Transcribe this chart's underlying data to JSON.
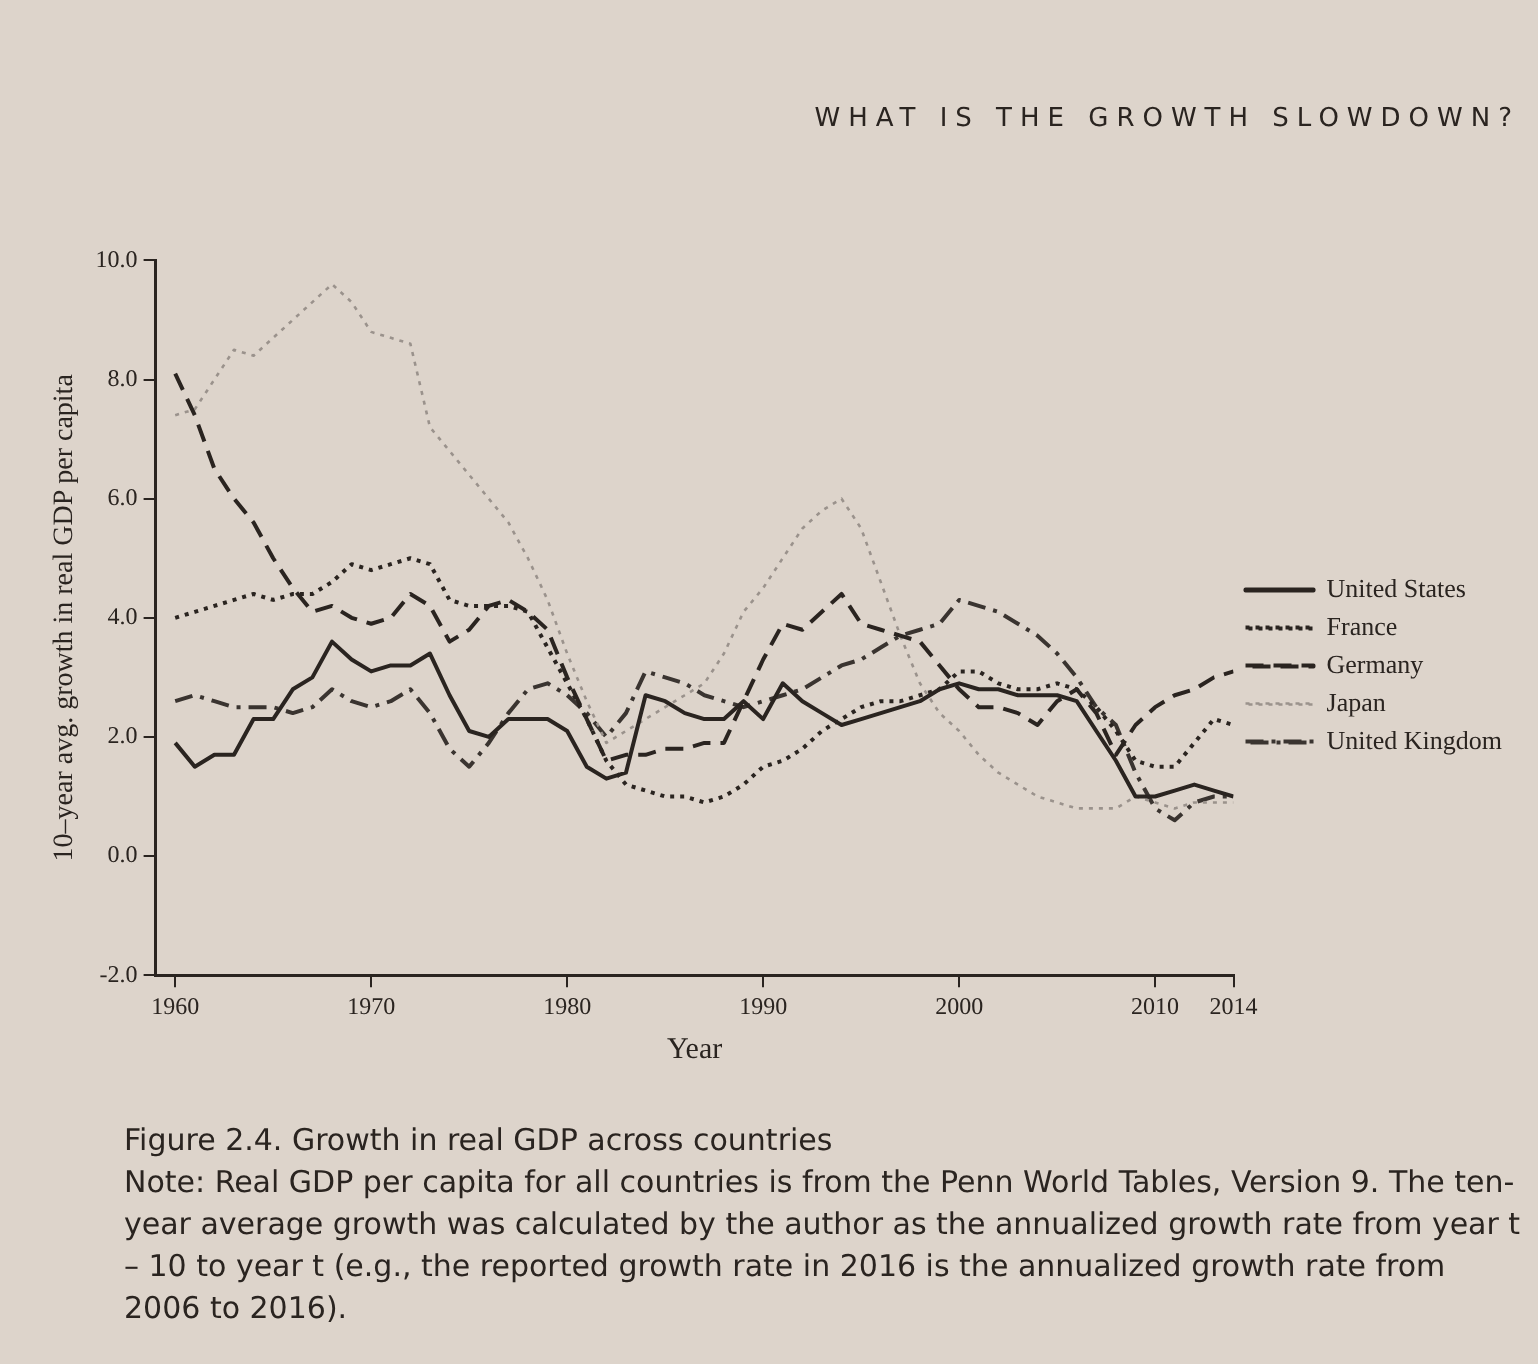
{
  "chart_data": {
    "type": "line",
    "title": "Figure 2.4. Growth in real GDP across countries",
    "xlabel": "Year",
    "ylabel": "10–year avg. growth in real GDP per capita",
    "annotations": [
      "WHAT IS THE GROWTH SLOWDOWN?",
      "Note: Real GDP per capita for all countries is from the Penn World Tables, Version 9. The ten-year average growth was calculated by the author as the annualized growth rate from year t – 10 to year t (e.g., the reported growth rate in 2016 is the annualized growth rate from 2006 to 2016)."
    ],
    "x": [
      1960,
      1961,
      1962,
      1963,
      1964,
      1965,
      1966,
      1967,
      1968,
      1969,
      1970,
      1971,
      1972,
      1973,
      1974,
      1975,
      1976,
      1977,
      1978,
      1979,
      1980,
      1981,
      1982,
      1983,
      1984,
      1985,
      1986,
      1987,
      1988,
      1989,
      1990,
      1991,
      1992,
      1993,
      1994,
      1995,
      1996,
      1997,
      1998,
      1999,
      2000,
      2001,
      2002,
      2003,
      2004,
      2005,
      2006,
      2007,
      2008,
      2009,
      2010,
      2011,
      2012,
      2013,
      2014
    ],
    "series": [
      {
        "name": "United States",
        "color": "#2a2420",
        "line_style": "solid",
        "values": [
          1.9,
          1.5,
          1.7,
          1.7,
          2.3,
          2.3,
          2.8,
          3.0,
          3.6,
          3.3,
          3.1,
          3.2,
          3.2,
          3.4,
          2.7,
          2.1,
          2.0,
          2.3,
          2.3,
          2.3,
          2.1,
          1.5,
          1.3,
          1.4,
          2.7,
          2.6,
          2.4,
          2.3,
          2.3,
          2.6,
          2.3,
          2.9,
          2.6,
          2.4,
          2.2,
          2.3,
          2.4,
          2.5,
          2.6,
          2.8,
          2.9,
          2.8,
          2.8,
          2.7,
          2.7,
          2.7,
          2.6,
          2.1,
          1.6,
          1.0,
          1.0,
          1.1,
          1.2,
          1.1,
          1.0
        ]
      },
      {
        "name": "France",
        "color": "#2a2420",
        "line_style": "dotted",
        "values": [
          4.0,
          4.1,
          4.2,
          4.3,
          4.4,
          4.3,
          4.4,
          4.4,
          4.6,
          4.9,
          4.8,
          4.9,
          5.0,
          4.9,
          4.3,
          4.2,
          4.2,
          4.2,
          4.1,
          3.5,
          2.9,
          2.3,
          1.6,
          1.2,
          1.1,
          1.0,
          1.0,
          0.9,
          1.0,
          1.2,
          1.5,
          1.6,
          1.8,
          2.1,
          2.3,
          2.5,
          2.6,
          2.6,
          2.7,
          2.8,
          3.1,
          3.1,
          2.9,
          2.8,
          2.8,
          2.9,
          2.8,
          2.5,
          2.1,
          1.6,
          1.5,
          1.5,
          1.9,
          2.3,
          2.2
        ]
      },
      {
        "name": "Germany",
        "color": "#2a2420",
        "line_style": "dashed",
        "values": [
          8.1,
          7.4,
          6.5,
          6.0,
          5.6,
          5.0,
          4.5,
          4.1,
          4.2,
          4.0,
          3.9,
          4.0,
          4.4,
          4.2,
          3.6,
          3.8,
          4.2,
          4.3,
          4.1,
          3.8,
          3.0,
          2.3,
          1.6,
          1.7,
          1.7,
          1.8,
          1.8,
          1.9,
          1.9,
          2.6,
          3.3,
          3.9,
          3.8,
          4.1,
          4.4,
          3.9,
          3.8,
          3.7,
          3.6,
          3.2,
          2.8,
          2.5,
          2.5,
          2.4,
          2.2,
          2.6,
          2.8,
          2.4,
          1.7,
          2.2,
          2.5,
          2.7,
          2.8,
          3.0,
          3.1
        ]
      },
      {
        "name": "Japan",
        "color": "#9a928c",
        "line_style": "dotted",
        "values": [
          7.4,
          7.5,
          8.0,
          8.5,
          8.4,
          8.7,
          9.0,
          9.3,
          9.6,
          9.3,
          8.8,
          8.7,
          8.6,
          7.2,
          6.8,
          6.4,
          6.0,
          5.6,
          5.0,
          4.3,
          3.4,
          2.6,
          1.9,
          2.1,
          2.3,
          2.5,
          2.7,
          2.9,
          3.4,
          4.1,
          4.5,
          5.0,
          5.5,
          5.8,
          6.0,
          5.5,
          4.6,
          3.7,
          2.9,
          2.4,
          2.1,
          1.7,
          1.4,
          1.2,
          1.0,
          0.9,
          0.8,
          0.8,
          0.8,
          1.0,
          0.9,
          0.8,
          0.9,
          0.9,
          0.9
        ]
      },
      {
        "name": "United Kingdom",
        "color": "#3a3430",
        "line_style": "dashdot",
        "values": [
          2.6,
          2.7,
          2.6,
          2.5,
          2.5,
          2.5,
          2.4,
          2.5,
          2.8,
          2.6,
          2.5,
          2.6,
          2.8,
          2.4,
          1.8,
          1.5,
          1.9,
          2.4,
          2.8,
          2.9,
          2.7,
          2.4,
          2.0,
          2.4,
          3.1,
          3.0,
          2.9,
          2.7,
          2.6,
          2.5,
          2.6,
          2.7,
          2.8,
          3.0,
          3.2,
          3.3,
          3.5,
          3.7,
          3.8,
          3.9,
          4.3,
          4.2,
          4.1,
          3.9,
          3.7,
          3.4,
          3.0,
          2.5,
          2.2,
          1.4,
          0.8,
          0.6,
          0.9,
          1.0,
          1.0
        ]
      }
    ],
    "xlim": [
      1959,
      2014
    ],
    "xticks": [
      1960,
      1970,
      1980,
      1990,
      2000,
      2010,
      2014
    ],
    "ylim": [
      -2,
      10
    ],
    "yticks": [
      {
        "value": -2,
        "label": "-2.0"
      },
      {
        "value": 0,
        "label": "0.0"
      },
      {
        "value": 2,
        "label": "2.0"
      },
      {
        "value": 4,
        "label": "4.0"
      },
      {
        "value": 6,
        "label": "6.0"
      },
      {
        "value": 8,
        "label": "8.0"
      },
      {
        "value": 10,
        "label": "10.0"
      }
    ],
    "grid": false,
    "legend": "right",
    "marker": "none"
  }
}
